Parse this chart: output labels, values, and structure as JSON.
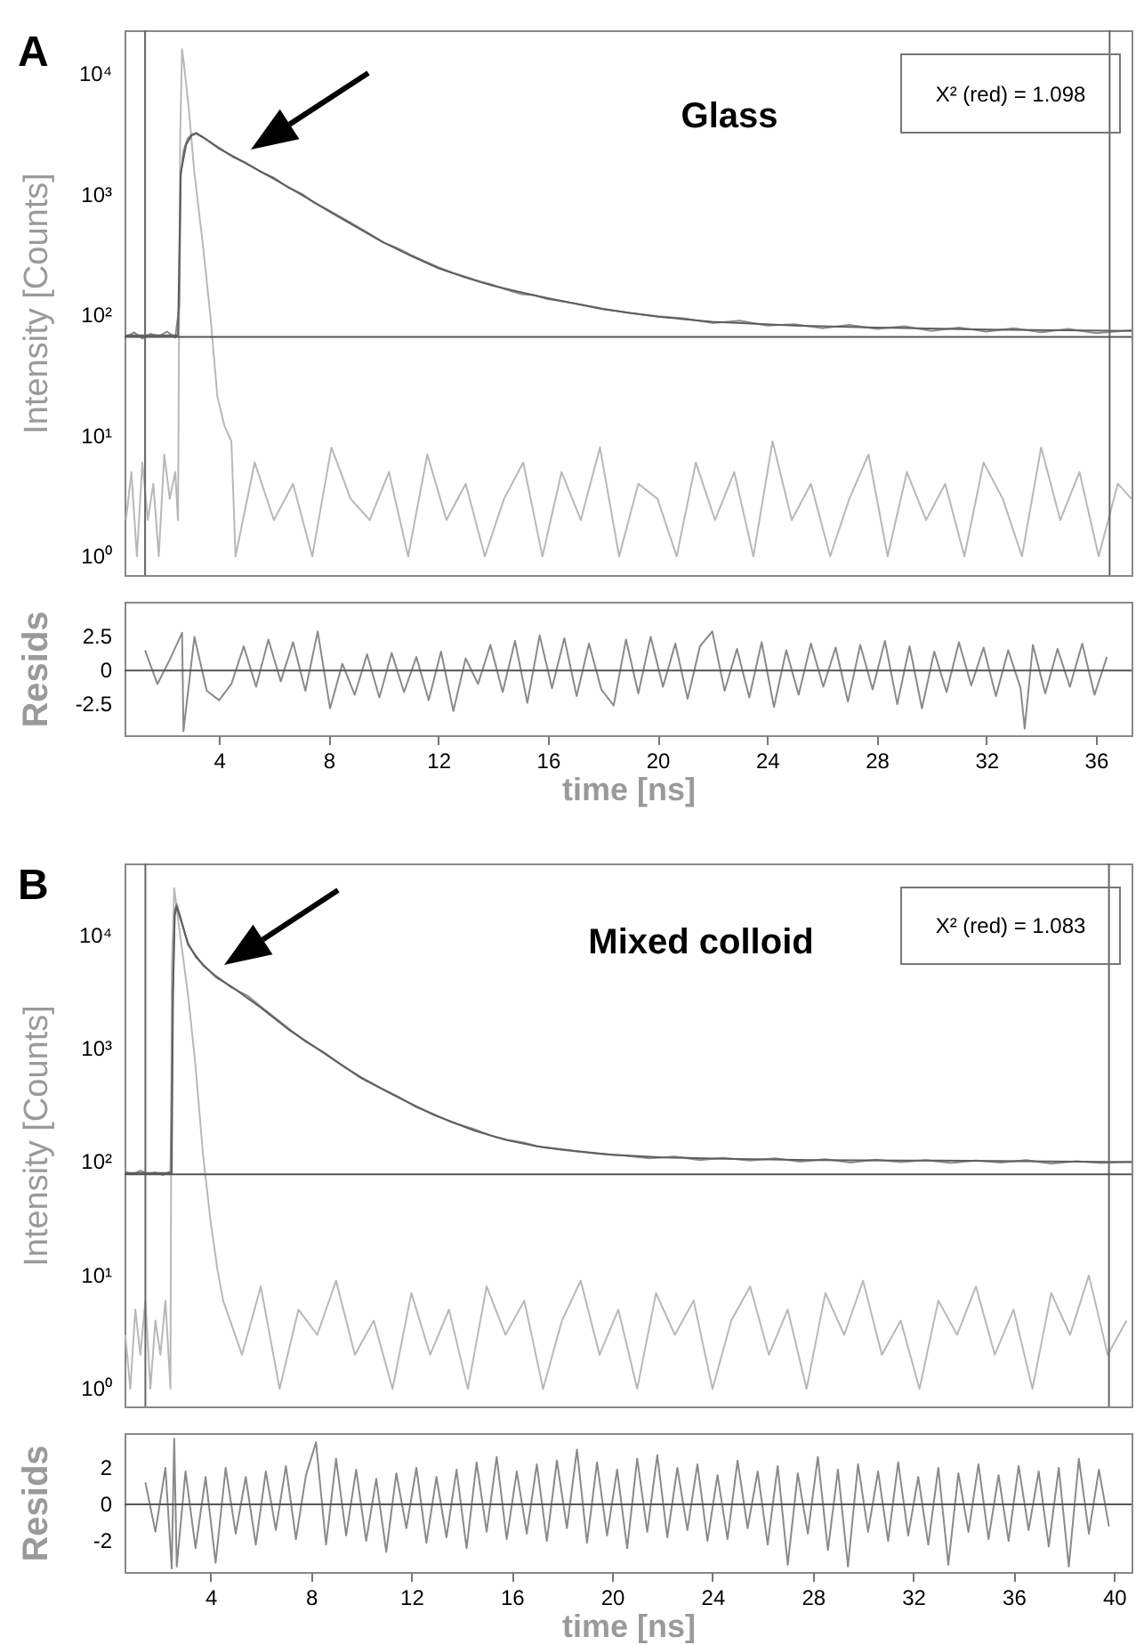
{
  "chart_data": [
    {
      "type": "line",
      "annotations": [
        "A",
        "Glass",
        "X² (red) = 1.098"
      ],
      "ylabel": "Intensity [Counts]",
      "xlim": [
        0.55,
        37.3
      ],
      "ylim": [
        0.7,
        23000
      ],
      "log": true,
      "tick_labels": "y",
      "yticks": [
        {
          "value": 1,
          "label": "10⁰"
        },
        {
          "value": 10,
          "label": "10¹"
        },
        {
          "value": 100,
          "label": "10²"
        },
        {
          "value": 1000,
          "label": "10³"
        },
        {
          "value": 10000,
          "label": "10⁴"
        }
      ],
      "series": [
        {
          "color": "#b8b8b8",
          "x": [
            0.6,
            0.8,
            1.0,
            1.2,
            1.4,
            1.6,
            1.8,
            2.0,
            2.2,
            2.4,
            2.5,
            2.58,
            2.65,
            2.72,
            2.9,
            3.1,
            3.4,
            3.68,
            3.94,
            4.2,
            4.45,
            4.6,
            5.3,
            6.0,
            6.7,
            7.4,
            8.1,
            8.8,
            9.5,
            10.2,
            10.9,
            11.6,
            12.3,
            13.0,
            13.7,
            14.4,
            15.1,
            15.8,
            16.5,
            17.2,
            17.9,
            18.6,
            19.3,
            20.0,
            20.7,
            21.4,
            22.1,
            22.8,
            23.5,
            24.2,
            24.9,
            25.6,
            26.3,
            27.0,
            27.7,
            28.4,
            29.1,
            29.8,
            30.5,
            31.2,
            31.9,
            32.6,
            33.3,
            34.0,
            34.7,
            35.4,
            36.1,
            36.8,
            37.3
          ],
          "values": [
            2,
            5,
            1,
            6,
            2,
            4,
            1,
            7,
            3,
            5,
            2,
            3000,
            16000,
            12000,
            5000,
            1500,
            400,
            100,
            21,
            12,
            9,
            1,
            6,
            2,
            4,
            1,
            8,
            3,
            2,
            5,
            1,
            7,
            2,
            4,
            1,
            3,
            6,
            1,
            5,
            2,
            8,
            1,
            4,
            3,
            1,
            6,
            2,
            5,
            1,
            9,
            2,
            4,
            1,
            3,
            7,
            1,
            5,
            2,
            4,
            1,
            6,
            3,
            1,
            8,
            2,
            5,
            1,
            4,
            3
          ]
        },
        {
          "color": "#8c8c8c",
          "x": [
            0.6,
            0.9,
            1.2,
            1.5,
            1.8,
            2.1,
            2.4,
            2.55,
            2.6,
            2.7,
            2.85,
            3.0,
            3.17,
            3.4,
            3.7,
            4.0,
            4.5,
            5.0,
            5.5,
            6.0,
            6.5,
            7.0,
            7.5,
            8.0,
            8.5,
            9.0,
            9.5,
            10.0,
            10.5,
            11,
            11.5,
            12,
            12.5,
            13,
            13.5,
            14,
            14.5,
            15,
            15.5,
            16,
            17,
            18,
            19,
            20,
            21,
            22,
            23,
            24,
            25,
            26,
            27,
            28,
            29,
            30,
            31,
            32,
            33,
            34,
            35,
            36,
            37.3
          ],
          "values": [
            66,
            72,
            64,
            70,
            67,
            73,
            65,
            120,
            1400,
            2300,
            2900,
            3150,
            3250,
            3000,
            2700,
            2450,
            2050,
            1820,
            1550,
            1380,
            1150,
            1020,
            850,
            740,
            640,
            550,
            470,
            400,
            360,
            315,
            280,
            250,
            225,
            208,
            190,
            178,
            162,
            150,
            146,
            136,
            125,
            113,
            104,
            98,
            94,
            86,
            90,
            82,
            84,
            78,
            83,
            77,
            81,
            74,
            79,
            73,
            78,
            72,
            77,
            71,
            75
          ]
        },
        {
          "color": "#5e5e5e",
          "x": [
            0.6,
            2.5,
            2.6,
            2.8,
            3.0,
            3.17,
            3.5,
            4,
            5,
            6,
            7,
            8,
            9,
            10,
            11,
            12,
            13,
            14,
            15,
            16,
            18,
            20,
            22,
            25,
            28,
            32,
            37.3
          ],
          "values": [
            68,
            68,
            1500,
            2600,
            3100,
            3200,
            2900,
            2400,
            1800,
            1350,
            1000,
            730,
            540,
            400,
            310,
            245,
            205,
            175,
            155,
            138,
            112,
            97,
            88,
            82,
            79,
            76,
            74
          ]
        }
      ],
      "ref_lines": [
        {
          "axis": "x",
          "value": 1.3,
          "color": "#666666"
        },
        {
          "axis": "x",
          "value": 36.5,
          "color": "#666666"
        },
        {
          "axis": "y",
          "value": 66,
          "color": "#555555"
        }
      ]
    },
    {
      "type": "line",
      "xlabel": "time [ns]",
      "ylabel": "Resids",
      "xlim": [
        0.55,
        37.3
      ],
      "ylim": [
        -4.8,
        5.1
      ],
      "xticks": [
        4,
        8,
        12,
        16,
        20,
        24,
        28,
        32,
        36
      ],
      "yticks": [
        -2.5,
        0,
        2.5
      ],
      "series": [
        {
          "color": "#8a8a8a",
          "x": [
            1.3,
            1.75,
            2.2,
            2.65,
            2.7,
            3.1,
            3.55,
            4.0,
            4.45,
            4.9,
            5.35,
            5.8,
            6.25,
            6.7,
            7.15,
            7.6,
            8.05,
            8.5,
            8.95,
            9.4,
            9.85,
            10.3,
            10.75,
            11.2,
            11.65,
            12.1,
            12.55,
            13.0,
            13.45,
            13.9,
            14.35,
            14.8,
            15.25,
            15.7,
            16.15,
            16.6,
            17.05,
            17.5,
            17.95,
            18.4,
            18.85,
            19.3,
            19.75,
            20.2,
            20.65,
            21.1,
            21.55,
            22.0,
            22.45,
            22.9,
            23.35,
            23.8,
            24.25,
            24.7,
            25.15,
            25.6,
            26.05,
            26.5,
            26.95,
            27.4,
            27.85,
            28.3,
            28.75,
            29.2,
            29.65,
            30.1,
            30.55,
            31.0,
            31.45,
            31.9,
            32.35,
            32.8,
            33.25,
            33.4,
            33.7,
            34.15,
            34.6,
            35.05,
            35.5,
            35.95,
            36.4
          ],
          "values": [
            1.5,
            -1.0,
            0.8,
            2.8,
            -4.5,
            2.5,
            -1.5,
            -2.2,
            -1.0,
            1.8,
            -1.2,
            2.3,
            -0.8,
            2.1,
            -1.5,
            2.9,
            -2.8,
            0.5,
            -1.8,
            1.2,
            -2.0,
            1.3,
            -1.6,
            1.0,
            -2.2,
            1.4,
            -3.0,
            0.9,
            -1.0,
            1.9,
            -1.6,
            2.2,
            -2.4,
            2.6,
            -1.3,
            2.4,
            -1.9,
            2.0,
            -1.4,
            -2.6,
            2.3,
            -1.7,
            2.5,
            -1.2,
            2.0,
            -2.1,
            1.8,
            2.9,
            -1.5,
            1.6,
            -2.0,
            2.1,
            -2.7,
            1.5,
            -1.8,
            2.0,
            -1.2,
            1.7,
            -2.3,
            1.9,
            -1.4,
            2.2,
            -2.5,
            1.8,
            -2.8,
            1.4,
            -1.6,
            2.1,
            -1.1,
            1.7,
            -1.9,
            1.5,
            -1.3,
            -4.3,
            1.9,
            -1.7,
            1.6,
            -1.2,
            2.0,
            -1.8,
            1.0
          ]
        }
      ],
      "ref_lines": [
        {
          "axis": "y",
          "value": 0,
          "color": "#555555"
        }
      ]
    },
    {
      "type": "line",
      "annotations": [
        "B",
        "Mixed colloid",
        "X² (red) = 1.083"
      ],
      "ylabel": "Intensity [Counts]",
      "xlim": [
        0.57,
        40.7
      ],
      "ylim": [
        0.7,
        43000
      ],
      "log": true,
      "tick_labels": "y",
      "yticks": [
        {
          "value": 1,
          "label": "10⁰"
        },
        {
          "value": 10,
          "label": "10¹"
        },
        {
          "value": 100,
          "label": "10²"
        },
        {
          "value": 1000,
          "label": "10³"
        },
        {
          "value": 10000,
          "label": "10⁴"
        }
      ],
      "series": [
        {
          "color": "#b8b8b8",
          "x": [
            0.6,
            0.8,
            1.0,
            1.2,
            1.4,
            1.6,
            1.8,
            2.0,
            2.2,
            2.4,
            2.45,
            2.55,
            2.7,
            2.9,
            3.13,
            3.4,
            3.7,
            4.0,
            4.28,
            4.5,
            5.25,
            6.0,
            6.75,
            7.5,
            8.25,
            9.0,
            9.75,
            10.5,
            11.25,
            12.0,
            12.75,
            13.5,
            14.25,
            15.0,
            15.75,
            16.5,
            17.25,
            18.0,
            18.75,
            19.5,
            20.25,
            21.0,
            21.75,
            22.5,
            23.25,
            24.0,
            24.75,
            25.5,
            26.25,
            27.0,
            27.75,
            28.5,
            29.25,
            30.0,
            30.75,
            31.5,
            32.25,
            33.0,
            33.75,
            34.5,
            35.25,
            36.0,
            36.75,
            37.5,
            38.25,
            39.0,
            39.75,
            40.5
          ],
          "values": [
            3,
            1,
            5,
            2,
            6,
            1,
            4,
            2,
            6,
            1,
            5000,
            26000,
            14000,
            6500,
            2600,
            700,
            115,
            30,
            11,
            6,
            2,
            8,
            1,
            5,
            3,
            9,
            2,
            4,
            1,
            7,
            2,
            5,
            1,
            8,
            3,
            6,
            1,
            4,
            9,
            2,
            5,
            1,
            7,
            3,
            6,
            1,
            4,
            8,
            2,
            5,
            1,
            7,
            3,
            9,
            2,
            4,
            1,
            6,
            3,
            8,
            2,
            5,
            1,
            7,
            3,
            10,
            2,
            4
          ]
        },
        {
          "color": "#8c8c8c",
          "x": [
            0.6,
            0.9,
            1.2,
            1.5,
            1.8,
            2.1,
            2.4,
            2.5,
            2.57,
            2.64,
            2.8,
            3.1,
            3.4,
            3.7,
            4.2,
            4.85,
            5.5,
            6,
            6.6,
            7.15,
            7.8,
            8.5,
            9.2,
            10,
            10.7,
            11.5,
            12.2,
            12.9,
            13.6,
            14.5,
            15.2,
            15.8,
            16.5,
            17.2,
            18,
            18.6,
            19.5,
            20.5,
            21.5,
            22.5,
            23.5,
            24.4,
            25.5,
            26.5,
            27.5,
            28.5,
            29.5,
            30.5,
            31.5,
            32.5,
            33.5,
            34.5,
            35.5,
            36.5,
            37.5,
            38.5,
            39.5,
            40.7
          ],
          "values": [
            82,
            78,
            84,
            79,
            81,
            77,
            83,
            3500,
            16000,
            19000,
            14500,
            8200,
            6700,
            5400,
            4400,
            3450,
            2900,
            2350,
            1850,
            1480,
            1150,
            930,
            720,
            560,
            460,
            375,
            305,
            265,
            225,
            195,
            170,
            158,
            148,
            135,
            128,
            124,
            118,
            114,
            108,
            112,
            104,
            109,
            103,
            108,
            101,
            106,
            99,
            105,
            100,
            104,
            98,
            103,
            99,
            104,
            97,
            102,
            98,
            101
          ]
        },
        {
          "color": "#5e5e5e",
          "x": [
            0.6,
            2.45,
            2.5,
            2.57,
            2.64,
            2.8,
            3.1,
            3.4,
            3.7,
            4.2,
            4.85,
            6,
            7.15,
            8.5,
            10,
            11.5,
            12.9,
            14.5,
            15.8,
            17,
            18.6,
            20,
            22,
            24.4,
            28,
            33,
            40.7
          ],
          "values": [
            80,
            80,
            3000,
            15000,
            18000,
            14000,
            8500,
            6500,
            5500,
            4300,
            3500,
            2300,
            1450,
            920,
            550,
            370,
            260,
            190,
            156,
            138,
            125,
            116,
            110,
            107,
            104,
            103,
            100
          ]
        }
      ],
      "ref_lines": [
        {
          "axis": "x",
          "value": 1.4,
          "color": "#666666"
        },
        {
          "axis": "x",
          "value": 39.8,
          "color": "#666666"
        },
        {
          "axis": "y",
          "value": 78,
          "color": "#555555"
        }
      ]
    },
    {
      "type": "line",
      "xlabel": "time [ns]",
      "ylabel": "Resids",
      "xlim": [
        0.57,
        40.7
      ],
      "ylim": [
        -3.7,
        3.9
      ],
      "xticks": [
        4,
        8,
        12,
        16,
        20,
        24,
        28,
        32,
        36,
        40
      ],
      "yticks": [
        -2,
        0,
        2
      ],
      "series": [
        {
          "color": "#8a8a8a",
          "x": [
            1.4,
            1.8,
            2.2,
            2.45,
            2.55,
            2.65,
            3.0,
            3.4,
            3.8,
            4.2,
            4.6,
            5.0,
            5.4,
            5.8,
            6.2,
            6.6,
            7.0,
            7.4,
            7.8,
            8.2,
            8.6,
            9.0,
            9.4,
            9.8,
            10.2,
            10.6,
            11.0,
            11.4,
            11.8,
            12.2,
            12.6,
            13.0,
            13.4,
            13.8,
            14.2,
            14.6,
            15.0,
            15.4,
            15.8,
            16.2,
            16.6,
            17.0,
            17.4,
            17.8,
            18.2,
            18.6,
            19.0,
            19.4,
            19.8,
            20.2,
            20.6,
            21.0,
            21.4,
            21.8,
            22.2,
            22.6,
            23.0,
            23.4,
            23.8,
            24.2,
            24.6,
            25.0,
            25.4,
            25.8,
            26.2,
            26.6,
            27.0,
            27.4,
            27.8,
            28.2,
            28.6,
            29.0,
            29.4,
            29.8,
            30.2,
            30.6,
            31.0,
            31.4,
            31.8,
            32.2,
            32.6,
            33.0,
            33.4,
            33.8,
            34.2,
            34.6,
            35.0,
            35.4,
            35.8,
            36.2,
            36.6,
            37.0,
            37.4,
            37.8,
            38.2,
            38.6,
            39.0,
            39.4,
            39.8
          ],
          "values": [
            1.2,
            -1.5,
            2.0,
            -3.5,
            3.6,
            -3.4,
            1.8,
            -2.4,
            1.5,
            -3.2,
            2.0,
            -1.6,
            1.5,
            -2.2,
            1.8,
            -1.4,
            2.1,
            -1.9,
            1.6,
            3.4,
            -2.2,
            2.5,
            -1.7,
            1.9,
            -2.0,
            1.4,
            -2.6,
            1.7,
            -1.3,
            2.0,
            -2.1,
            1.5,
            -1.8,
            1.9,
            -2.4,
            2.3,
            -1.5,
            2.6,
            -1.9,
            1.8,
            -1.6,
            2.2,
            -2.0,
            2.4,
            -1.3,
            3.0,
            -2.1,
            2.3,
            -1.7,
            1.9,
            -2.4,
            2.5,
            -1.5,
            2.7,
            -1.8,
            2.0,
            -1.4,
            2.2,
            -2.0,
            1.6,
            -1.9,
            2.4,
            -1.3,
            1.8,
            -2.2,
            2.1,
            -3.3,
            1.7,
            -1.6,
            2.6,
            -2.5,
            1.9,
            -3.4,
            2.2,
            -1.5,
            1.8,
            -2.0,
            2.3,
            -1.7,
            1.5,
            -2.2,
            2.0,
            -3.3,
            1.7,
            -1.5,
            2.2,
            -1.9,
            1.6,
            -2.0,
            2.1,
            -1.4,
            1.8,
            -2.3,
            2.0,
            -3.4,
            2.5,
            -1.6,
            1.9,
            -1.2
          ]
        }
      ],
      "ref_lines": [
        {
          "axis": "y",
          "value": 0,
          "color": "#555555"
        }
      ]
    }
  ]
}
